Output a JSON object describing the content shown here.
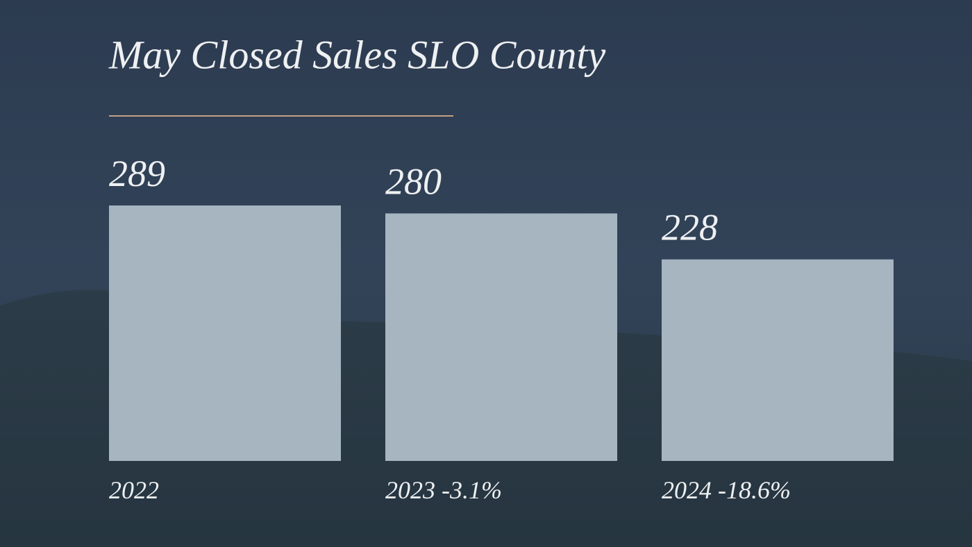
{
  "chart_data": {
    "type": "bar",
    "title": "May Closed Sales SLO County",
    "categories": [
      "2022",
      "2023 -3.1%",
      "2024 -18.6%"
    ],
    "values": [
      289,
      280,
      228
    ],
    "color": "#aebcc7"
  }
}
